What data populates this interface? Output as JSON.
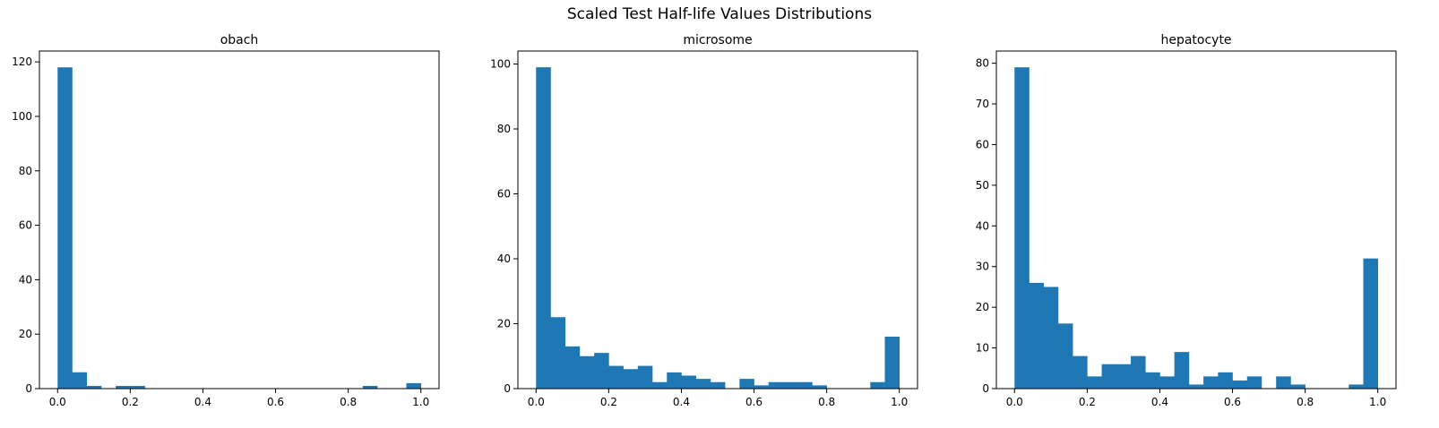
{
  "figure": {
    "title": "Scaled Test Half-life Values Distributions"
  },
  "chart_data": [
    {
      "type": "bar",
      "title": "obach",
      "xlabel": "",
      "ylabel": "",
      "bin_start": 0.0,
      "bin_width": 0.04,
      "values": [
        118,
        6,
        1,
        0,
        1,
        1,
        0,
        0,
        0,
        0,
        0,
        0,
        0,
        0,
        0,
        0,
        0,
        0,
        0,
        0,
        0,
        1,
        0,
        0,
        2
      ],
      "xlim": [
        -0.05,
        1.05
      ],
      "ylim": [
        0,
        124
      ],
      "xticks": [
        0.0,
        0.2,
        0.4,
        0.6,
        0.8,
        1.0
      ],
      "xtick_labels": [
        "0.0",
        "0.2",
        "0.4",
        "0.6",
        "0.8",
        "1.0"
      ],
      "yticks": [
        0,
        20,
        40,
        60,
        80,
        100,
        120
      ],
      "ytick_labels": [
        "0",
        "20",
        "40",
        "60",
        "80",
        "100",
        "120"
      ],
      "color": "#1f77b4",
      "grid": false
    },
    {
      "type": "bar",
      "title": "microsome",
      "xlabel": "",
      "ylabel": "",
      "bin_start": 0.0,
      "bin_width": 0.04,
      "values": [
        99,
        22,
        13,
        10,
        11,
        7,
        6,
        7,
        2,
        5,
        4,
        3,
        2,
        0,
        3,
        1,
        2,
        2,
        2,
        1,
        0,
        0,
        0,
        2,
        16
      ],
      "xlim": [
        -0.05,
        1.05
      ],
      "ylim": [
        0,
        104
      ],
      "xticks": [
        0.0,
        0.2,
        0.4,
        0.6,
        0.8,
        1.0
      ],
      "xtick_labels": [
        "0.0",
        "0.2",
        "0.4",
        "0.6",
        "0.8",
        "1.0"
      ],
      "yticks": [
        0,
        20,
        40,
        60,
        80,
        100
      ],
      "ytick_labels": [
        "0",
        "20",
        "40",
        "60",
        "80",
        "100"
      ],
      "color": "#1f77b4",
      "grid": false
    },
    {
      "type": "bar",
      "title": "hepatocyte",
      "xlabel": "",
      "ylabel": "",
      "bin_start": 0.0,
      "bin_width": 0.04,
      "values": [
        79,
        26,
        25,
        16,
        8,
        3,
        6,
        6,
        8,
        4,
        3,
        9,
        1,
        3,
        4,
        2,
        3,
        0,
        3,
        1,
        0,
        0,
        0,
        1,
        32
      ],
      "xlim": [
        -0.05,
        1.05
      ],
      "ylim": [
        0,
        83
      ],
      "xticks": [
        0.0,
        0.2,
        0.4,
        0.6,
        0.8,
        1.0
      ],
      "xtick_labels": [
        "0.0",
        "0.2",
        "0.4",
        "0.6",
        "0.8",
        "1.0"
      ],
      "yticks": [
        0,
        10,
        20,
        30,
        40,
        50,
        60,
        70,
        80
      ],
      "ytick_labels": [
        "0",
        "10",
        "20",
        "30",
        "40",
        "50",
        "60",
        "70",
        "80"
      ],
      "color": "#1f77b4",
      "grid": false
    }
  ]
}
